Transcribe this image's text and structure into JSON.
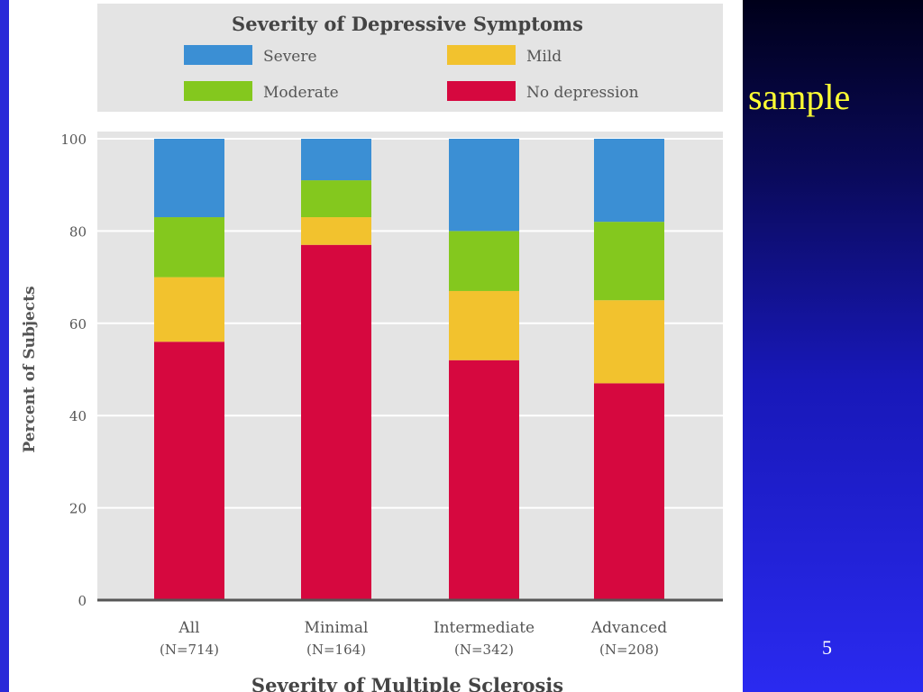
{
  "slide": {
    "side_text": "sample",
    "page_number": "5"
  },
  "colors": {
    "slide_background_top": "#00001a",
    "slide_background_bottom": "#2a2af0",
    "side_text": "#ffff33",
    "severe": "#3b8fd4",
    "moderate": "#84c81e",
    "mild": "#f2c22e",
    "no_depression": "#d6083f"
  },
  "chart_data": {
    "type": "bar",
    "stacked": true,
    "legend_title": "Severity of Depressive Symptoms",
    "legend_placement": "top",
    "xlabel": "Severity of Multiple Sclerosis",
    "ylabel": "Percent of Subjects",
    "ylim": [
      0,
      100
    ],
    "yticks": [
      0,
      20,
      40,
      60,
      80,
      100
    ],
    "grid": true,
    "categories": [
      "All",
      "Minimal",
      "Intermediate",
      "Advanced"
    ],
    "category_sublabels": [
      "(N=714)",
      "(N=164)",
      "(N=342)",
      "(N=208)"
    ],
    "series": [
      {
        "name": "No depression",
        "color": "#d6083f",
        "values": [
          56,
          77,
          52,
          47
        ]
      },
      {
        "name": "Mild",
        "color": "#f2c22e",
        "values": [
          14,
          6,
          15,
          18
        ]
      },
      {
        "name": "Moderate",
        "color": "#84c81e",
        "values": [
          13,
          8,
          13,
          17
        ]
      },
      {
        "name": "Severe",
        "color": "#3b8fd4",
        "values": [
          17,
          9,
          20,
          18
        ]
      }
    ]
  }
}
